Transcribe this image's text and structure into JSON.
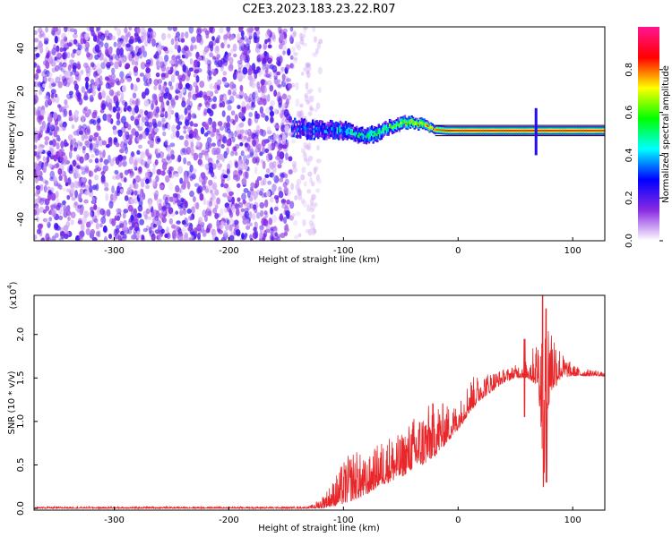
{
  "title": "C2E3.2023.183.23.22.R07",
  "chart_data": [
    {
      "type": "heatmap",
      "title": "C2E3.2023.183.23.22.R07",
      "xlabel": "Height of straight line (km)",
      "ylabel": "Frequency (Hz)",
      "xlim": [
        -370,
        128
      ],
      "ylim": [
        -50,
        50
      ],
      "x_ticks": [
        -300,
        -200,
        -100,
        0,
        100
      ],
      "x_tick_labels": [
        "-300",
        "-200",
        "-100",
        "0",
        "100"
      ],
      "y_ticks": [
        -40,
        -20,
        0,
        20,
        40
      ],
      "y_tick_labels": [
        "-40",
        "-20",
        "0",
        "20",
        "40"
      ],
      "colorbar": {
        "label": "Normalized spectral amplitude",
        "range": [
          0,
          1
        ],
        "ticks": [
          0.0,
          0.2,
          0.4,
          0.6,
          0.8
        ],
        "tick_labels": [
          "0.0",
          "0.2",
          "0.4",
          "0.6",
          "0.8"
        ],
        "colors": [
          "#ffffff",
          "#8a2be2",
          "#0000ff",
          "#00ffff",
          "#00ff00",
          "#ffff00",
          "#ff0000",
          "#ff1493"
        ]
      },
      "regions": [
        {
          "kind": "noise",
          "x_range": [
            -370,
            -145
          ],
          "y_range": [
            -50,
            50
          ],
          "amplitude_range": [
            0.0,
            0.15
          ]
        },
        {
          "kind": "sparse-noise",
          "x_range": [
            -145,
            -120
          ],
          "y_range": [
            -50,
            50
          ],
          "amplitude_range": [
            0.0,
            0.05
          ]
        }
      ],
      "signal_track": {
        "x": [
          -145,
          -130,
          -115,
          -100,
          -90,
          -80,
          -70,
          -60,
          -50,
          -40,
          -30,
          -20,
          -10,
          0,
          20,
          40,
          60,
          70,
          80,
          100,
          128
        ],
        "frequency": [
          3,
          2,
          2,
          1.5,
          0,
          -1,
          0,
          3,
          5,
          5.5,
          4,
          2,
          1.5,
          1.5,
          1.5,
          1.5,
          1.5,
          1.5,
          1.5,
          1.5,
          1.5
        ],
        "band_halfwidth_hz": [
          4,
          4,
          4,
          4,
          3.5,
          3.5,
          3.5,
          3,
          3,
          2.5,
          2.5,
          2,
          2,
          2,
          2,
          2,
          2,
          2,
          2,
          2,
          2
        ],
        "amplitude": [
          0.25,
          0.3,
          0.35,
          0.4,
          0.45,
          0.5,
          0.55,
          0.6,
          0.65,
          0.7,
          0.75,
          0.8,
          0.85,
          0.9,
          0.9,
          0.9,
          0.9,
          0.9,
          0.9,
          0.9,
          0.9
        ]
      },
      "spikes": [
        {
          "x": 68,
          "frequency_range": [
            -10,
            12
          ]
        }
      ]
    },
    {
      "type": "line",
      "xlabel": "Height of straight line (km)",
      "ylabel": "SNR (10 * v/v)",
      "y_multiplier_label": "(x10",
      "y_multiplier_exponent": "4",
      "xlim": [
        -370,
        128
      ],
      "ylim": [
        -0.02,
        2.45
      ],
      "x_ticks": [
        -300,
        -200,
        -100,
        0,
        100
      ],
      "x_tick_labels": [
        "-300",
        "-200",
        "-100",
        "0",
        "100"
      ],
      "y_ticks": [
        0.0,
        0.5,
        1.0,
        1.5,
        2.0
      ],
      "y_tick_labels": [
        "0.0",
        "0.5",
        "1.0",
        "1.5",
        "2.0"
      ],
      "series": [
        {
          "color": "#e8272a",
          "envelope": {
            "x": [
              -370,
              -200,
              -130,
              -120,
              -110,
              -100,
              -90,
              -80,
              -70,
              -60,
              -50,
              -40,
              -30,
              -20,
              -10,
              0,
              10,
              20,
              30,
              40,
              50,
              60,
              70,
              75,
              80,
              90,
              100,
              110,
              120,
              128
            ],
            "lower": [
              0.0,
              0.0,
              0.0,
              0.0,
              0.02,
              0.05,
              0.1,
              0.15,
              0.25,
              0.3,
              0.35,
              0.45,
              0.5,
              0.6,
              0.75,
              0.9,
              1.1,
              1.25,
              1.35,
              1.45,
              1.5,
              1.5,
              1.4,
              0.3,
              1.3,
              1.5,
              1.52,
              1.52,
              1.52,
              1.52
            ],
            "upper": [
              0.02,
              0.02,
              0.02,
              0.12,
              0.3,
              0.55,
              0.7,
              0.55,
              0.75,
              0.85,
              0.85,
              1.05,
              1.15,
              1.25,
              1.2,
              1.2,
              1.5,
              1.55,
              1.58,
              1.6,
              1.65,
              1.7,
              2.0,
              2.4,
              2.3,
              1.8,
              1.65,
              1.6,
              1.6,
              1.55
            ]
          },
          "spikes": [
            {
              "x": 58,
              "low": 1.05,
              "high": 1.95
            },
            {
              "x": 74,
              "low": 0.25,
              "high": 2.45
            },
            {
              "x": 77,
              "low": 0.3,
              "high": 2.3
            }
          ]
        }
      ]
    }
  ]
}
